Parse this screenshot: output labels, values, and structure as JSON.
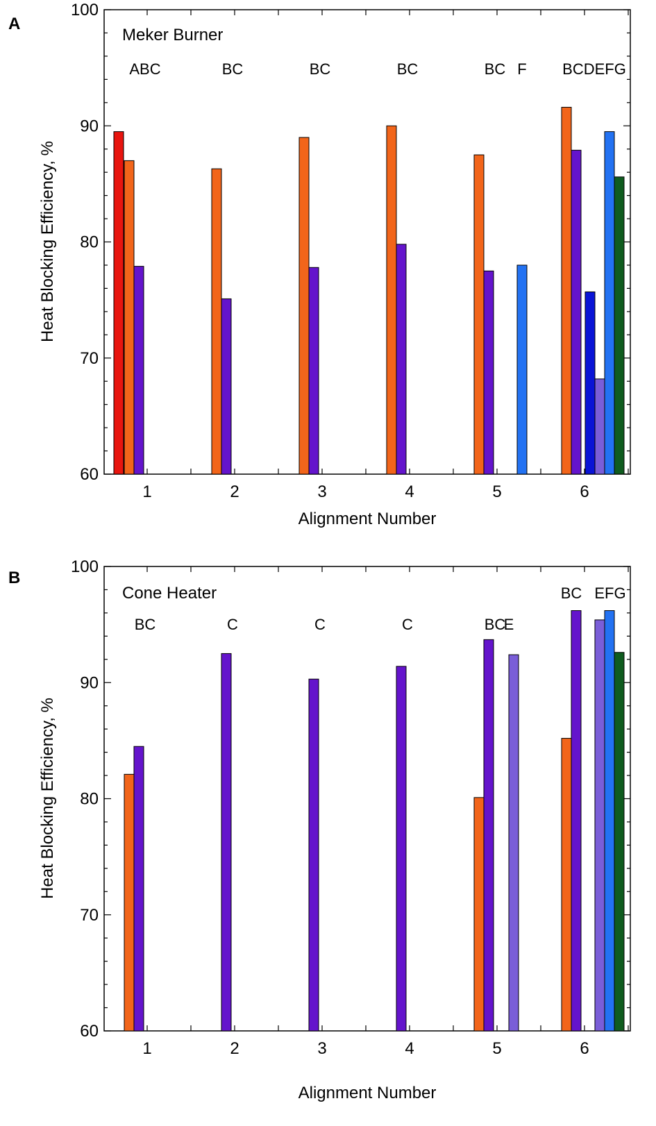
{
  "chart_data": [
    {
      "type": "bar",
      "panel_label": "A",
      "title": "Meker Burner",
      "xlabel": "Alignment Number",
      "ylabel": "Heat Blocking Efficiency, %",
      "ylim": [
        60,
        100
      ],
      "yticks": [
        60,
        70,
        80,
        90,
        100
      ],
      "categories": [
        "1",
        "2",
        "3",
        "4",
        "5",
        "6"
      ],
      "annotations": [
        "ABC",
        "BC",
        "BC",
        "BC",
        "BC",
        "BCDEFG"
      ],
      "annotations_extra": [
        "",
        "",
        "",
        "",
        "F",
        ""
      ],
      "bars": [
        {
          "cat": 1,
          "slot": "A",
          "value": 89.5
        },
        {
          "cat": 1,
          "slot": "B",
          "value": 87.0
        },
        {
          "cat": 1,
          "slot": "C",
          "value": 77.9
        },
        {
          "cat": 2,
          "slot": "B",
          "value": 86.3
        },
        {
          "cat": 2,
          "slot": "C",
          "value": 75.1
        },
        {
          "cat": 3,
          "slot": "B",
          "value": 89.0
        },
        {
          "cat": 3,
          "slot": "C",
          "value": 77.8
        },
        {
          "cat": 4,
          "slot": "B",
          "value": 90.0
        },
        {
          "cat": 4,
          "slot": "C",
          "value": 79.8
        },
        {
          "cat": 5,
          "slot": "B",
          "value": 87.5
        },
        {
          "cat": 5,
          "slot": "C",
          "value": 77.5
        },
        {
          "cat": 5,
          "slot": "F",
          "value": 78.0
        },
        {
          "cat": 6,
          "slot": "B",
          "value": 91.6
        },
        {
          "cat": 6,
          "slot": "C",
          "value": 87.9
        },
        {
          "cat": 6,
          "slot": "D",
          "value": 75.7
        },
        {
          "cat": 6,
          "slot": "E",
          "value": 68.2
        },
        {
          "cat": 6,
          "slot": "F",
          "value": 89.5
        },
        {
          "cat": 6,
          "slot": "G",
          "value": 85.6
        }
      ],
      "grid": false
    },
    {
      "type": "bar",
      "panel_label": "B",
      "title": "Cone Heater",
      "xlabel": "Alignment Number",
      "ylabel": "Heat Blocking Efficiency, %",
      "ylim": [
        60,
        100
      ],
      "yticks": [
        60,
        70,
        80,
        90,
        100
      ],
      "categories": [
        "1",
        "2",
        "3",
        "4",
        "5",
        "6"
      ],
      "annotations": [
        "BC",
        "C",
        "C",
        "C",
        "BC",
        "BC"
      ],
      "annotations_extra": [
        "",
        "",
        "",
        "",
        "E",
        "EFG"
      ],
      "bars": [
        {
          "cat": 1,
          "slot": "B",
          "value": 82.1
        },
        {
          "cat": 1,
          "slot": "C",
          "value": 84.5
        },
        {
          "cat": 2,
          "slot": "C",
          "value": 92.5
        },
        {
          "cat": 3,
          "slot": "C",
          "value": 90.3
        },
        {
          "cat": 4,
          "slot": "C",
          "value": 91.4
        },
        {
          "cat": 5,
          "slot": "B",
          "value": 80.1
        },
        {
          "cat": 5,
          "slot": "C",
          "value": 93.7
        },
        {
          "cat": 5,
          "slot": "E",
          "value": 92.4
        },
        {
          "cat": 6,
          "slot": "B",
          "value": 85.2
        },
        {
          "cat": 6,
          "slot": "C",
          "value": 96.2
        },
        {
          "cat": 6,
          "slot": "E",
          "value": 95.4
        },
        {
          "cat": 6,
          "slot": "F",
          "value": 96.2
        },
        {
          "cat": 6,
          "slot": "G",
          "value": 92.6
        }
      ],
      "grid": false
    }
  ],
  "colors": {
    "A": "#e8150f",
    "B": "#f2651a",
    "C": "#6414cc",
    "D": "#0a14d6",
    "E": "#7a5ed8",
    "F": "#2372f2",
    "G": "#0f5c1e"
  }
}
